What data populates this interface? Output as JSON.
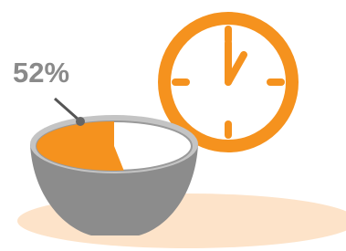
{
  "label": "52%",
  "value": 52
}
